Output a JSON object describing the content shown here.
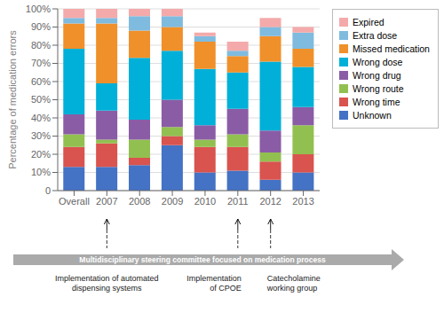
{
  "chart_data": {
    "type": "bar",
    "stacked": true,
    "grid": true,
    "legend": "right",
    "ylabel": "Percentage of medication errors",
    "categories": [
      "Overall",
      "2007",
      "2008",
      "2009",
      "2010",
      "2011",
      "2012",
      "2013"
    ],
    "series": [
      {
        "name": "Unknown",
        "color": "#4472C4",
        "values": [
          13,
          13,
          14,
          25,
          10,
          11,
          6,
          10
        ]
      },
      {
        "name": "Wrong time",
        "color": "#D9534F",
        "values": [
          11,
          13,
          4,
          5,
          14,
          13,
          10,
          10
        ]
      },
      {
        "name": "Wrong route",
        "color": "#92C050",
        "values": [
          7,
          2,
          10,
          5,
          4,
          7,
          5,
          16
        ]
      },
      {
        "name": "Wrong drug",
        "color": "#8B5CA6",
        "values": [
          11,
          16,
          11,
          15,
          8,
          14,
          12,
          10
        ]
      },
      {
        "name": "Wrong dose",
        "color": "#00B0D8",
        "values": [
          36,
          15,
          34,
          27,
          31,
          20,
          38,
          22
        ]
      },
      {
        "name": "Missed medication",
        "color": "#F0902A",
        "values": [
          14,
          33,
          15,
          13,
          15,
          9,
          14,
          10
        ]
      },
      {
        "name": "Extra dose",
        "color": "#7FBBDF",
        "values": [
          3,
          3,
          8,
          6,
          3,
          3,
          5,
          9
        ]
      },
      {
        "name": "Expired",
        "color": "#F4AAAA",
        "values": [
          5,
          5,
          4,
          4,
          2,
          5,
          5,
          3
        ]
      }
    ],
    "ylim": [
      0,
      100
    ],
    "yticks": [
      0,
      {
        "value": 10,
        "label": "10%"
      },
      {
        "value": 20,
        "label": "20%"
      },
      {
        "value": 30,
        "label": "30%"
      },
      {
        "value": 40,
        "label": "40%"
      },
      {
        "value": 50,
        "label": "50%"
      },
      {
        "value": 60,
        "label": "60%"
      },
      {
        "value": 70,
        "label": "70%"
      },
      {
        "value": 80,
        "label": "80%"
      },
      {
        "value": 90,
        "label": "90%"
      },
      {
        "value": 100,
        "label": "100%"
      }
    ],
    "annotations": [
      {
        "text": "Multidisciplinary steering committee focused on medication process"
      },
      {
        "text": "Implementation of automated\ndispensing systems",
        "x": "2007"
      },
      {
        "text": "Implementation\nof CPOE",
        "x": "2011"
      },
      {
        "text": "Catecholamine\nworking group",
        "x": "2012"
      }
    ]
  }
}
